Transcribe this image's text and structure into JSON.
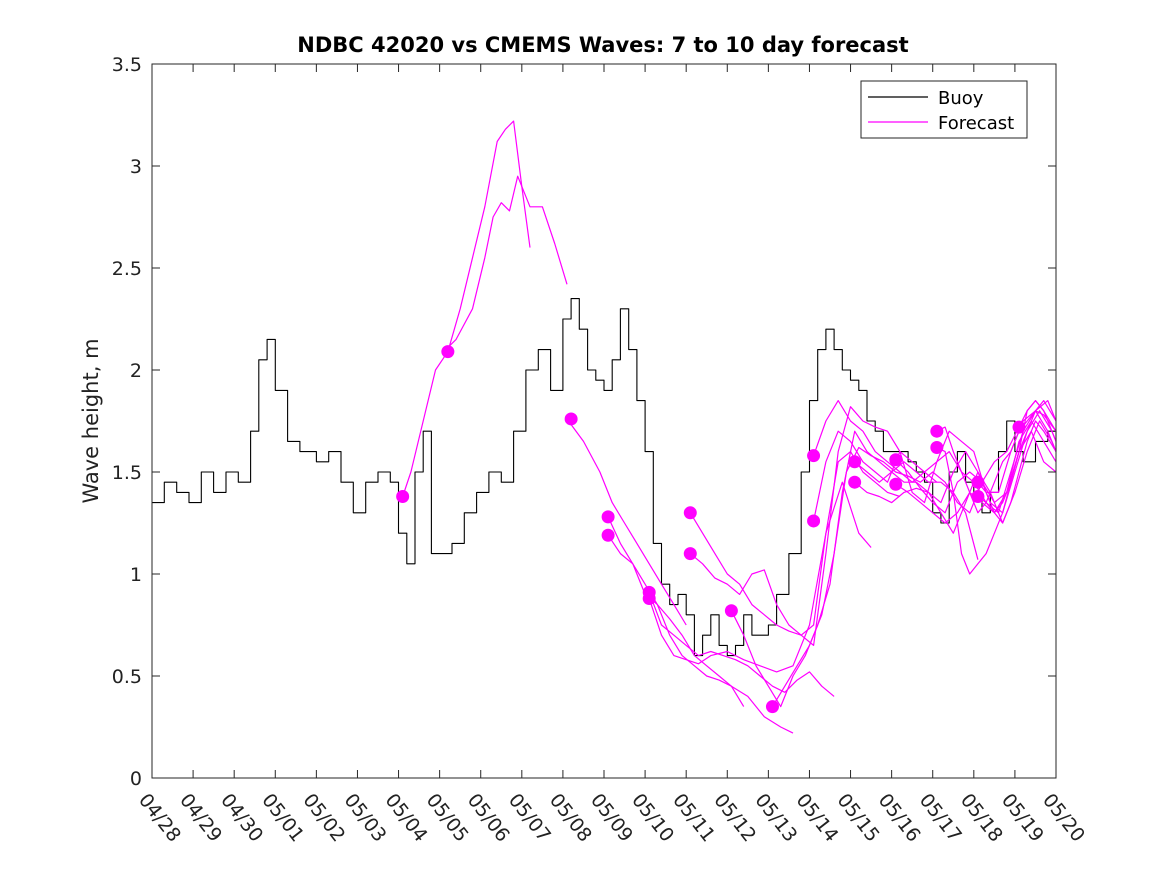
{
  "chart_data": {
    "type": "line",
    "title": "NDBC 42020 vs CMEMS Waves: 7 to 10 day forecast",
    "ylabel": "Wave height, m",
    "xlabel": "",
    "ylim": [
      0,
      3.5
    ],
    "yticks": [
      0,
      0.5,
      1,
      1.5,
      2,
      2.5,
      3,
      3.5
    ],
    "ytick_labels": [
      "0",
      "0.5",
      "1",
      "1.5",
      "2",
      "2.5",
      "3",
      "3.5"
    ],
    "x_unit": "days since 04/28",
    "xlim": [
      0,
      22
    ],
    "xtick_labels": [
      "04/28",
      "04/29",
      "04/30",
      "05/01",
      "05/02",
      "05/03",
      "05/04",
      "05/05",
      "05/06",
      "05/07",
      "05/08",
      "05/09",
      "05/10",
      "05/11",
      "05/12",
      "05/13",
      "05/14",
      "05/15",
      "05/16",
      "05/17",
      "05/18",
      "05/19",
      "05/20"
    ],
    "grid": false,
    "legend": {
      "position": "top-right",
      "entries": [
        {
          "name": "Buoy",
          "color": "#000000"
        },
        {
          "name": "Forecast",
          "color": "#ff00ff"
        }
      ]
    },
    "colors": {
      "buoy": "#000000",
      "forecast": "#ff00ff"
    },
    "series": [
      {
        "name": "Buoy",
        "color": "#000000",
        "x": [
          0,
          0.3,
          0.6,
          0.9,
          1.2,
          1.5,
          1.8,
          2.1,
          2.4,
          2.6,
          2.8,
          3.0,
          3.3,
          3.6,
          4.0,
          4.3,
          4.6,
          4.9,
          5.2,
          5.5,
          5.8,
          6.0,
          6.2,
          6.4,
          6.6,
          6.8,
          7.0,
          7.3,
          7.6,
          7.9,
          8.2,
          8.5,
          8.8,
          9.1,
          9.4,
          9.7,
          10.0,
          10.2,
          10.4,
          10.6,
          10.8,
          11.0,
          11.2,
          11.4,
          11.6,
          11.8,
          12.0,
          12.2,
          12.4,
          12.6,
          12.8,
          13.0,
          13.2,
          13.4,
          13.6,
          13.8,
          14.0,
          14.2,
          14.4,
          14.6,
          14.8,
          15.0,
          15.2,
          15.5,
          15.8,
          16.0,
          16.2,
          16.4,
          16.6,
          16.8,
          17.0,
          17.2,
          17.4,
          17.6,
          17.8,
          18.0,
          18.2,
          18.4,
          18.6,
          18.8,
          19.0,
          19.2,
          19.4,
          19.6,
          19.8,
          20.0,
          20.2,
          20.4,
          20.6,
          20.8,
          21.0,
          21.2,
          21.5,
          21.8,
          22.0
        ],
        "y": [
          1.35,
          1.45,
          1.4,
          1.35,
          1.5,
          1.4,
          1.5,
          1.45,
          1.7,
          2.05,
          2.15,
          1.9,
          1.65,
          1.6,
          1.55,
          1.6,
          1.45,
          1.3,
          1.45,
          1.5,
          1.45,
          1.2,
          1.05,
          1.5,
          1.7,
          1.1,
          1.1,
          1.15,
          1.3,
          1.4,
          1.5,
          1.45,
          1.7,
          2.0,
          2.1,
          1.9,
          2.25,
          2.35,
          2.2,
          2.0,
          1.95,
          1.9,
          2.05,
          2.3,
          2.1,
          1.85,
          1.6,
          1.15,
          0.95,
          0.85,
          0.9,
          0.8,
          0.6,
          0.7,
          0.8,
          0.65,
          0.6,
          0.65,
          0.8,
          0.7,
          0.7,
          0.75,
          0.9,
          1.1,
          1.5,
          1.85,
          2.1,
          2.2,
          2.1,
          2.0,
          1.95,
          1.9,
          1.75,
          1.7,
          1.6,
          1.6,
          1.6,
          1.55,
          1.5,
          1.45,
          1.3,
          1.25,
          1.5,
          1.6,
          1.45,
          1.4,
          1.3,
          1.4,
          1.6,
          1.75,
          1.6,
          1.55,
          1.65,
          1.7,
          1.6
        ]
      },
      {
        "name": "",
        "color": "#ff00ff",
        "x": [
          6.1,
          6.3,
          6.6,
          6.9,
          7.2,
          7.5,
          7.8,
          8.1,
          8.4,
          8.6,
          8.8,
          9.0,
          9.2
        ],
        "y": [
          1.38,
          1.5,
          1.75,
          2.0,
          2.09,
          2.3,
          2.55,
          2.8,
          3.12,
          3.18,
          3.22,
          2.9,
          2.6
        ]
      },
      {
        "name": "",
        "color": "#ff00ff",
        "x": [
          7.1,
          7.4,
          7.8,
          8.1,
          8.3,
          8.5,
          8.7,
          8.9,
          9.2,
          9.5,
          9.8,
          10.1
        ],
        "y": [
          2.09,
          2.15,
          2.3,
          2.55,
          2.75,
          2.82,
          2.78,
          2.95,
          2.8,
          2.8,
          2.62,
          2.42
        ]
      },
      {
        "name": "",
        "color": "#ff00ff",
        "x": [
          10.1,
          10.5,
          10.9,
          11.2,
          11.5,
          11.8,
          12.1,
          12.4,
          12.7,
          13.0
        ],
        "y": [
          1.76,
          1.65,
          1.5,
          1.35,
          1.25,
          1.15,
          1.05,
          0.95,
          0.85,
          0.75
        ]
      },
      {
        "name": "",
        "color": "#ff00ff",
        "x": [
          11.1,
          11.4,
          11.7,
          12.0,
          12.3,
          12.6,
          12.9,
          13.2,
          13.5,
          13.8,
          14.1,
          14.4
        ],
        "y": [
          1.28,
          1.15,
          1.05,
          0.9,
          0.85,
          0.78,
          0.7,
          0.6,
          0.55,
          0.5,
          0.45,
          0.35
        ]
      },
      {
        "name": "",
        "color": "#ff00ff",
        "x": [
          11.1,
          11.4,
          11.7,
          12.0,
          12.3,
          12.6,
          12.9,
          13.2,
          13.5,
          13.8,
          14.1,
          14.5,
          14.9,
          15.3,
          15.6
        ],
        "y": [
          1.19,
          1.1,
          1.05,
          0.95,
          0.85,
          0.7,
          0.6,
          0.55,
          0.5,
          0.48,
          0.45,
          0.4,
          0.3,
          0.25,
          0.22
        ]
      },
      {
        "name": "",
        "color": "#ff00ff",
        "x": [
          12.1,
          12.4,
          12.7,
          13.0,
          13.3,
          13.6,
          13.9,
          14.2,
          14.5,
          14.8,
          15.1,
          15.4,
          15.7,
          16.0,
          16.3,
          16.6
        ],
        "y": [
          0.91,
          0.75,
          0.7,
          0.65,
          0.6,
          0.62,
          0.6,
          0.58,
          0.55,
          0.5,
          0.45,
          0.42,
          0.48,
          0.52,
          0.45,
          0.4
        ]
      },
      {
        "name": "",
        "color": "#ff00ff",
        "x": [
          12.1,
          12.4,
          12.7,
          13.0,
          13.3,
          13.6,
          14.0,
          14.4,
          14.8,
          15.2,
          15.6,
          16.0,
          16.4,
          16.8,
          17.2,
          17.5
        ],
        "y": [
          0.88,
          0.7,
          0.6,
          0.58,
          0.56,
          0.6,
          0.62,
          0.58,
          0.55,
          0.52,
          0.55,
          0.75,
          1.2,
          1.45,
          1.2,
          1.13
        ]
      },
      {
        "name": "",
        "color": "#ff00ff",
        "x": [
          13.1,
          13.4,
          13.7,
          14.0,
          14.3,
          14.6,
          14.9,
          15.2,
          15.5,
          15.8,
          16.1,
          16.4,
          16.7,
          17.0,
          17.3,
          17.6,
          17.9,
          18.2
        ],
        "y": [
          1.3,
          1.2,
          1.1,
          1.0,
          0.95,
          0.85,
          0.8,
          0.75,
          0.72,
          0.7,
          0.75,
          1.2,
          1.55,
          1.6,
          1.5,
          1.45,
          1.4,
          1.38
        ]
      },
      {
        "name": "",
        "color": "#ff00ff",
        "x": [
          13.1,
          13.4,
          13.7,
          14.0,
          14.3,
          14.6,
          14.9,
          15.2,
          15.5,
          15.8,
          16.1,
          16.4,
          16.7,
          17.0,
          17.3,
          17.6,
          17.9,
          18.2,
          18.5,
          18.8,
          19.1
        ],
        "y": [
          1.1,
          1.05,
          0.98,
          0.95,
          0.9,
          1.0,
          1.02,
          0.85,
          0.75,
          0.7,
          0.65,
          1.1,
          1.6,
          1.82,
          1.75,
          1.72,
          1.7,
          1.6,
          1.55,
          1.5,
          1.45
        ]
      },
      {
        "name": "",
        "color": "#ff00ff",
        "x": [
          14.1,
          14.4,
          14.7,
          15.0,
          15.3,
          15.6,
          15.9,
          16.2,
          16.5,
          16.8,
          17.1,
          17.4,
          17.7,
          18.0,
          18.3,
          18.6,
          18.9,
          19.2,
          19.5,
          19.8,
          20.1
        ],
        "y": [
          0.82,
          0.7,
          0.55,
          0.45,
          0.35,
          0.5,
          0.6,
          0.75,
          0.95,
          1.4,
          1.7,
          1.6,
          1.55,
          1.5,
          1.55,
          1.5,
          1.45,
          1.45,
          1.4,
          1.3,
          1.07
        ]
      },
      {
        "name": "",
        "color": "#ff00ff",
        "x": [
          15.1,
          15.4,
          15.7,
          16.0,
          16.3,
          16.6,
          16.9,
          17.2,
          17.5,
          17.8,
          18.1,
          18.4,
          18.7,
          19.0,
          19.3,
          19.6,
          19.9,
          20.2,
          20.5,
          20.8,
          21.1
        ],
        "y": [
          0.35,
          0.45,
          0.55,
          0.65,
          0.8,
          1.1,
          1.5,
          1.62,
          1.58,
          1.55,
          1.5,
          1.48,
          1.45,
          1.5,
          1.45,
          1.35,
          1.3,
          1.45,
          1.55,
          1.6,
          1.72
        ]
      },
      {
        "name": "",
        "color": "#ff00ff",
        "x": [
          16.1,
          16.4,
          16.7,
          17.0,
          17.3,
          17.6,
          17.9,
          18.2,
          18.5,
          18.8,
          19.1,
          19.4,
          19.7,
          20.0,
          20.3,
          20.6,
          20.9,
          21.2,
          21.5,
          21.8,
          22.0
        ],
        "y": [
          1.58,
          1.75,
          1.85,
          1.75,
          1.7,
          1.6,
          1.55,
          1.5,
          1.45,
          1.5,
          1.55,
          1.6,
          1.5,
          1.45,
          1.35,
          1.3,
          1.5,
          1.7,
          1.8,
          1.85,
          1.75
        ]
      },
      {
        "name": "",
        "color": "#ff00ff",
        "x": [
          16.1,
          16.4,
          16.7,
          17.0,
          17.3,
          17.6,
          17.9,
          18.2,
          18.5,
          18.8,
          19.1,
          19.4,
          19.7,
          20.0,
          20.3,
          20.6,
          20.9,
          21.2,
          21.5,
          21.8,
          22.0
        ],
        "y": [
          1.26,
          1.55,
          1.7,
          1.65,
          1.55,
          1.5,
          1.45,
          1.6,
          1.4,
          1.35,
          1.55,
          1.7,
          1.65,
          1.6,
          1.4,
          1.4,
          1.6,
          1.75,
          1.8,
          1.7,
          1.6
        ]
      },
      {
        "name": "",
        "color": "#ff00ff",
        "x": [
          17.1,
          17.4,
          17.7,
          18.0,
          18.3,
          18.6,
          18.9,
          19.2,
          19.5,
          19.8,
          20.1,
          20.4,
          20.7,
          21.0,
          21.3,
          21.6,
          21.9,
          22.0
        ],
        "y": [
          1.55,
          1.5,
          1.45,
          1.5,
          1.45,
          1.45,
          1.4,
          1.35,
          1.5,
          1.6,
          1.5,
          1.35,
          1.3,
          1.5,
          1.7,
          1.8,
          1.7,
          1.65
        ]
      },
      {
        "name": "",
        "color": "#ff00ff",
        "x": [
          17.1,
          17.4,
          17.7,
          18.0,
          18.3,
          18.6,
          18.9,
          19.2,
          19.5,
          19.8,
          20.1,
          20.4,
          20.7,
          21.0,
          21.3,
          21.6,
          21.9,
          22.0
        ],
        "y": [
          1.45,
          1.4,
          1.38,
          1.35,
          1.4,
          1.42,
          1.4,
          1.3,
          1.2,
          1.35,
          1.5,
          1.4,
          1.25,
          1.4,
          1.6,
          1.75,
          1.65,
          1.6
        ]
      },
      {
        "name": "",
        "color": "#ff00ff",
        "x": [
          18.1,
          18.4,
          18.7,
          19.0,
          19.3,
          19.6,
          19.9,
          20.2,
          20.5,
          20.8,
          21.1,
          21.4,
          21.7,
          22.0
        ],
        "y": [
          1.56,
          1.5,
          1.42,
          1.35,
          1.3,
          1.45,
          1.5,
          1.45,
          1.35,
          1.4,
          1.65,
          1.75,
          1.65,
          1.55
        ]
      },
      {
        "name": "",
        "color": "#ff00ff",
        "x": [
          18.1,
          18.4,
          18.7,
          19.0,
          19.3,
          19.6,
          19.9,
          20.2,
          20.5,
          20.8,
          21.1,
          21.4,
          21.7,
          22.0
        ],
        "y": [
          1.44,
          1.4,
          1.35,
          1.3,
          1.25,
          1.3,
          1.4,
          1.35,
          1.3,
          1.4,
          1.6,
          1.7,
          1.55,
          1.5
        ]
      },
      {
        "name": "",
        "color": "#ff00ff",
        "x": [
          19.1,
          19.3,
          19.5,
          19.7,
          19.9,
          20.1,
          20.3,
          20.5,
          20.7,
          20.9,
          21.1,
          21.3,
          21.5,
          21.7,
          22.0
        ],
        "y": [
          1.7,
          1.72,
          1.6,
          1.5,
          1.4,
          1.3,
          1.35,
          1.45,
          1.55,
          1.6,
          1.7,
          1.75,
          1.8,
          1.78,
          1.7
        ]
      },
      {
        "name": "",
        "color": "#ff00ff",
        "x": [
          19.1,
          19.3,
          19.5,
          19.7,
          19.9,
          20.1,
          20.3,
          20.5,
          20.7,
          20.9,
          21.1,
          21.3,
          21.5,
          21.7,
          22.0
        ],
        "y": [
          1.62,
          1.6,
          1.4,
          1.1,
          1.0,
          1.05,
          1.1,
          1.2,
          1.3,
          1.45,
          1.6,
          1.7,
          1.8,
          1.85,
          1.75
        ]
      },
      {
        "name": "",
        "color": "#ff00ff",
        "x": [
          20.1,
          20.3,
          20.5,
          20.7,
          20.9,
          21.1,
          21.3,
          21.5,
          21.7,
          22.0
        ],
        "y": [
          1.45,
          1.4,
          1.3,
          1.25,
          1.35,
          1.5,
          1.65,
          1.75,
          1.7,
          1.6
        ]
      },
      {
        "name": "",
        "color": "#ff00ff",
        "x": [
          20.1,
          20.3,
          20.5,
          20.7,
          20.9,
          21.1,
          21.3,
          21.5,
          21.7,
          22.0
        ],
        "y": [
          1.38,
          1.35,
          1.3,
          1.35,
          1.45,
          1.6,
          1.8,
          1.85,
          1.8,
          1.7
        ]
      },
      {
        "name": "",
        "color": "#ff00ff",
        "x": [
          21.1,
          21.3,
          21.5,
          21.7,
          21.9,
          22.0
        ],
        "y": [
          1.72,
          1.8,
          1.85,
          1.8,
          1.7,
          1.65
        ]
      }
    ],
    "markers": {
      "color": "#ff00ff",
      "x": [
        6.1,
        7.2,
        10.2,
        11.1,
        11.1,
        12.1,
        12.1,
        13.1,
        13.1,
        14.1,
        15.1,
        16.1,
        16.1,
        17.1,
        17.1,
        18.1,
        18.1,
        19.1,
        19.1,
        20.1,
        20.1,
        21.1
      ],
      "y": [
        1.38,
        2.09,
        1.76,
        1.28,
        1.19,
        0.91,
        0.88,
        1.3,
        1.1,
        0.82,
        0.35,
        1.58,
        1.26,
        1.55,
        1.45,
        1.56,
        1.44,
        1.7,
        1.62,
        1.45,
        1.38,
        1.72
      ]
    }
  }
}
